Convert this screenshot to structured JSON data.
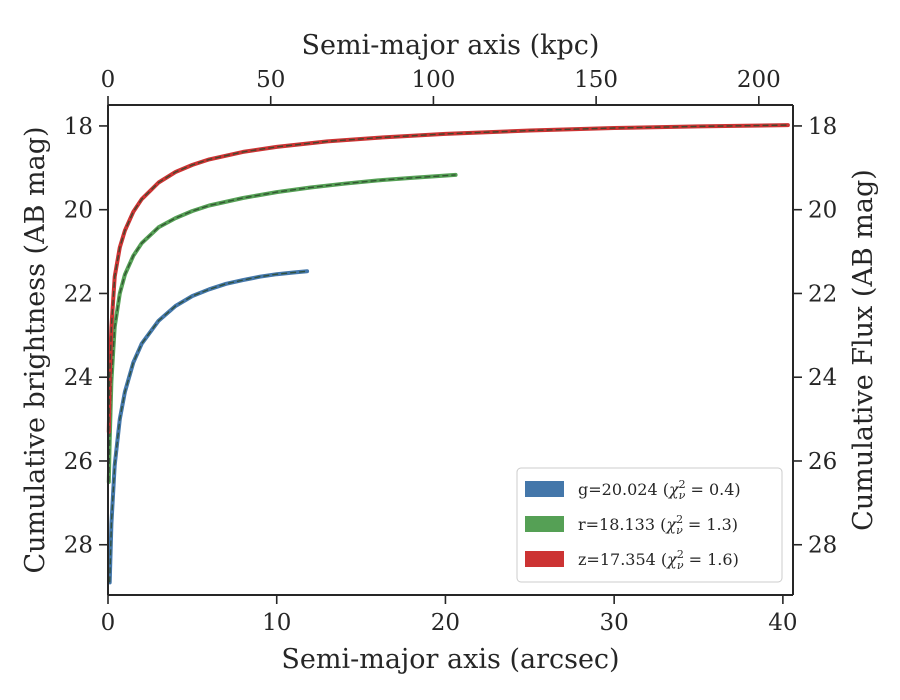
{
  "chart_data": {
    "type": "line",
    "xlabel": "Semi-major axis (arcsec)",
    "ylabel": "Cumulative brightness (AB mag)",
    "top_xlabel": "Semi-major axis (kpc)",
    "right_ylabel": "Cumulative Flux (AB mag)",
    "xlim": [
      0,
      40.6
    ],
    "ylim": [
      29.2,
      17.5
    ],
    "top_xlim": [
      0,
      210.5
    ],
    "y_inverted": true,
    "x_ticks": [
      0,
      10,
      20,
      30,
      40
    ],
    "top_x_ticks": [
      0,
      50,
      100,
      150,
      200
    ],
    "y_ticks": [
      18,
      20,
      22,
      24,
      26,
      28
    ],
    "grid": false,
    "legend_position": "lower-right",
    "series": [
      {
        "name": "g=20.024",
        "chi2_label": "0.4",
        "color": "#4477aa",
        "x": [
          0.1,
          0.2,
          0.4,
          0.7,
          1.0,
          1.5,
          2.0,
          3.0,
          4.0,
          5.0,
          6.0,
          7.0,
          8.0,
          9.0,
          10.0,
          11.0,
          11.8
        ],
        "y": [
          28.9,
          27.5,
          26.1,
          25.0,
          24.35,
          23.65,
          23.2,
          22.65,
          22.3,
          22.06,
          21.9,
          21.77,
          21.68,
          21.6,
          21.54,
          21.5,
          21.47
        ]
      },
      {
        "name": "r=18.133",
        "chi2_label": "1.3",
        "color": "#55a055",
        "x": [
          0.05,
          0.1,
          0.2,
          0.4,
          0.7,
          1.0,
          1.5,
          2.0,
          3.0,
          4.0,
          5.0,
          6.0,
          8.0,
          10.0,
          12.0,
          14.0,
          16.0,
          18.0,
          20.6
        ],
        "y": [
          26.5,
          25.5,
          24.1,
          22.8,
          22.0,
          21.55,
          21.1,
          20.8,
          20.42,
          20.2,
          20.03,
          19.9,
          19.72,
          19.58,
          19.47,
          19.38,
          19.3,
          19.24,
          19.17
        ]
      },
      {
        "name": "z=17.354",
        "chi2_label": "1.6",
        "color": "#cc3333",
        "x": [
          0.05,
          0.1,
          0.2,
          0.4,
          0.7,
          1.0,
          1.5,
          2.0,
          3.0,
          4.0,
          5.0,
          6.0,
          8.0,
          10.0,
          13.0,
          16.0,
          20.0,
          25.0,
          30.0,
          35.0,
          40.3
        ],
        "y": [
          25.3,
          24.0,
          22.8,
          21.6,
          20.9,
          20.5,
          20.05,
          19.75,
          19.35,
          19.1,
          18.93,
          18.8,
          18.62,
          18.5,
          18.37,
          18.28,
          18.19,
          18.11,
          18.05,
          18.01,
          17.98
        ]
      }
    ]
  }
}
